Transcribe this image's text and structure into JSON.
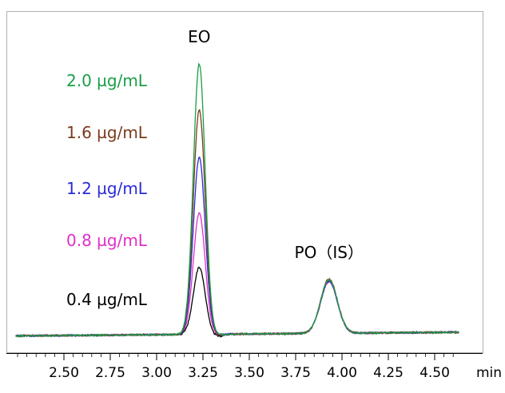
{
  "chart_data": {
    "type": "line",
    "title": "",
    "xlabel": "",
    "ylabel": "",
    "x_unit": "min",
    "xlim": [
      2.25,
      4.62
    ],
    "x_ticks": [
      "2.50",
      "2.75",
      "3.00",
      "3.25",
      "3.50",
      "3.75",
      "4.00",
      "4.25",
      "4.50"
    ],
    "x_tick_values": [
      2.5,
      2.75,
      3.0,
      3.25,
      3.5,
      3.75,
      4.0,
      4.25,
      4.5
    ],
    "minor_tick_step": 0.05,
    "grid": false,
    "legend": "left, stacked labels",
    "annotations": [
      {
        "text": "EO",
        "x": 3.23
      },
      {
        "text": "PO（IS）",
        "x": 3.93
      }
    ],
    "peaks": [
      {
        "label": "EO",
        "retention_time": 3.23,
        "width": 0.032
      },
      {
        "label": "PO（IS）",
        "retention_time": 3.93,
        "width": 0.045
      }
    ],
    "baseline": 0,
    "ylim": [
      -3,
      100
    ],
    "series": [
      {
        "name": "2.0 µg/mL",
        "color": "#1a9e46",
        "eo_height": 97.0,
        "po_height": 19.2
      },
      {
        "name": "1.6 µg/mL",
        "color": "#7b3b1c",
        "eo_height": 80.5,
        "po_height": 19.5
      },
      {
        "name": "1.2 µg/mL",
        "color": "#2b2bd8",
        "eo_height": 63.5,
        "po_height": 18.7
      },
      {
        "name": "0.8 µg/mL",
        "color": "#e02fc8",
        "eo_height": 43.5,
        "po_height": 18.5
      },
      {
        "name": "0.4 µg/mL",
        "color": "#000000",
        "eo_height": 24.0,
        "po_height": 18.8
      }
    ]
  }
}
